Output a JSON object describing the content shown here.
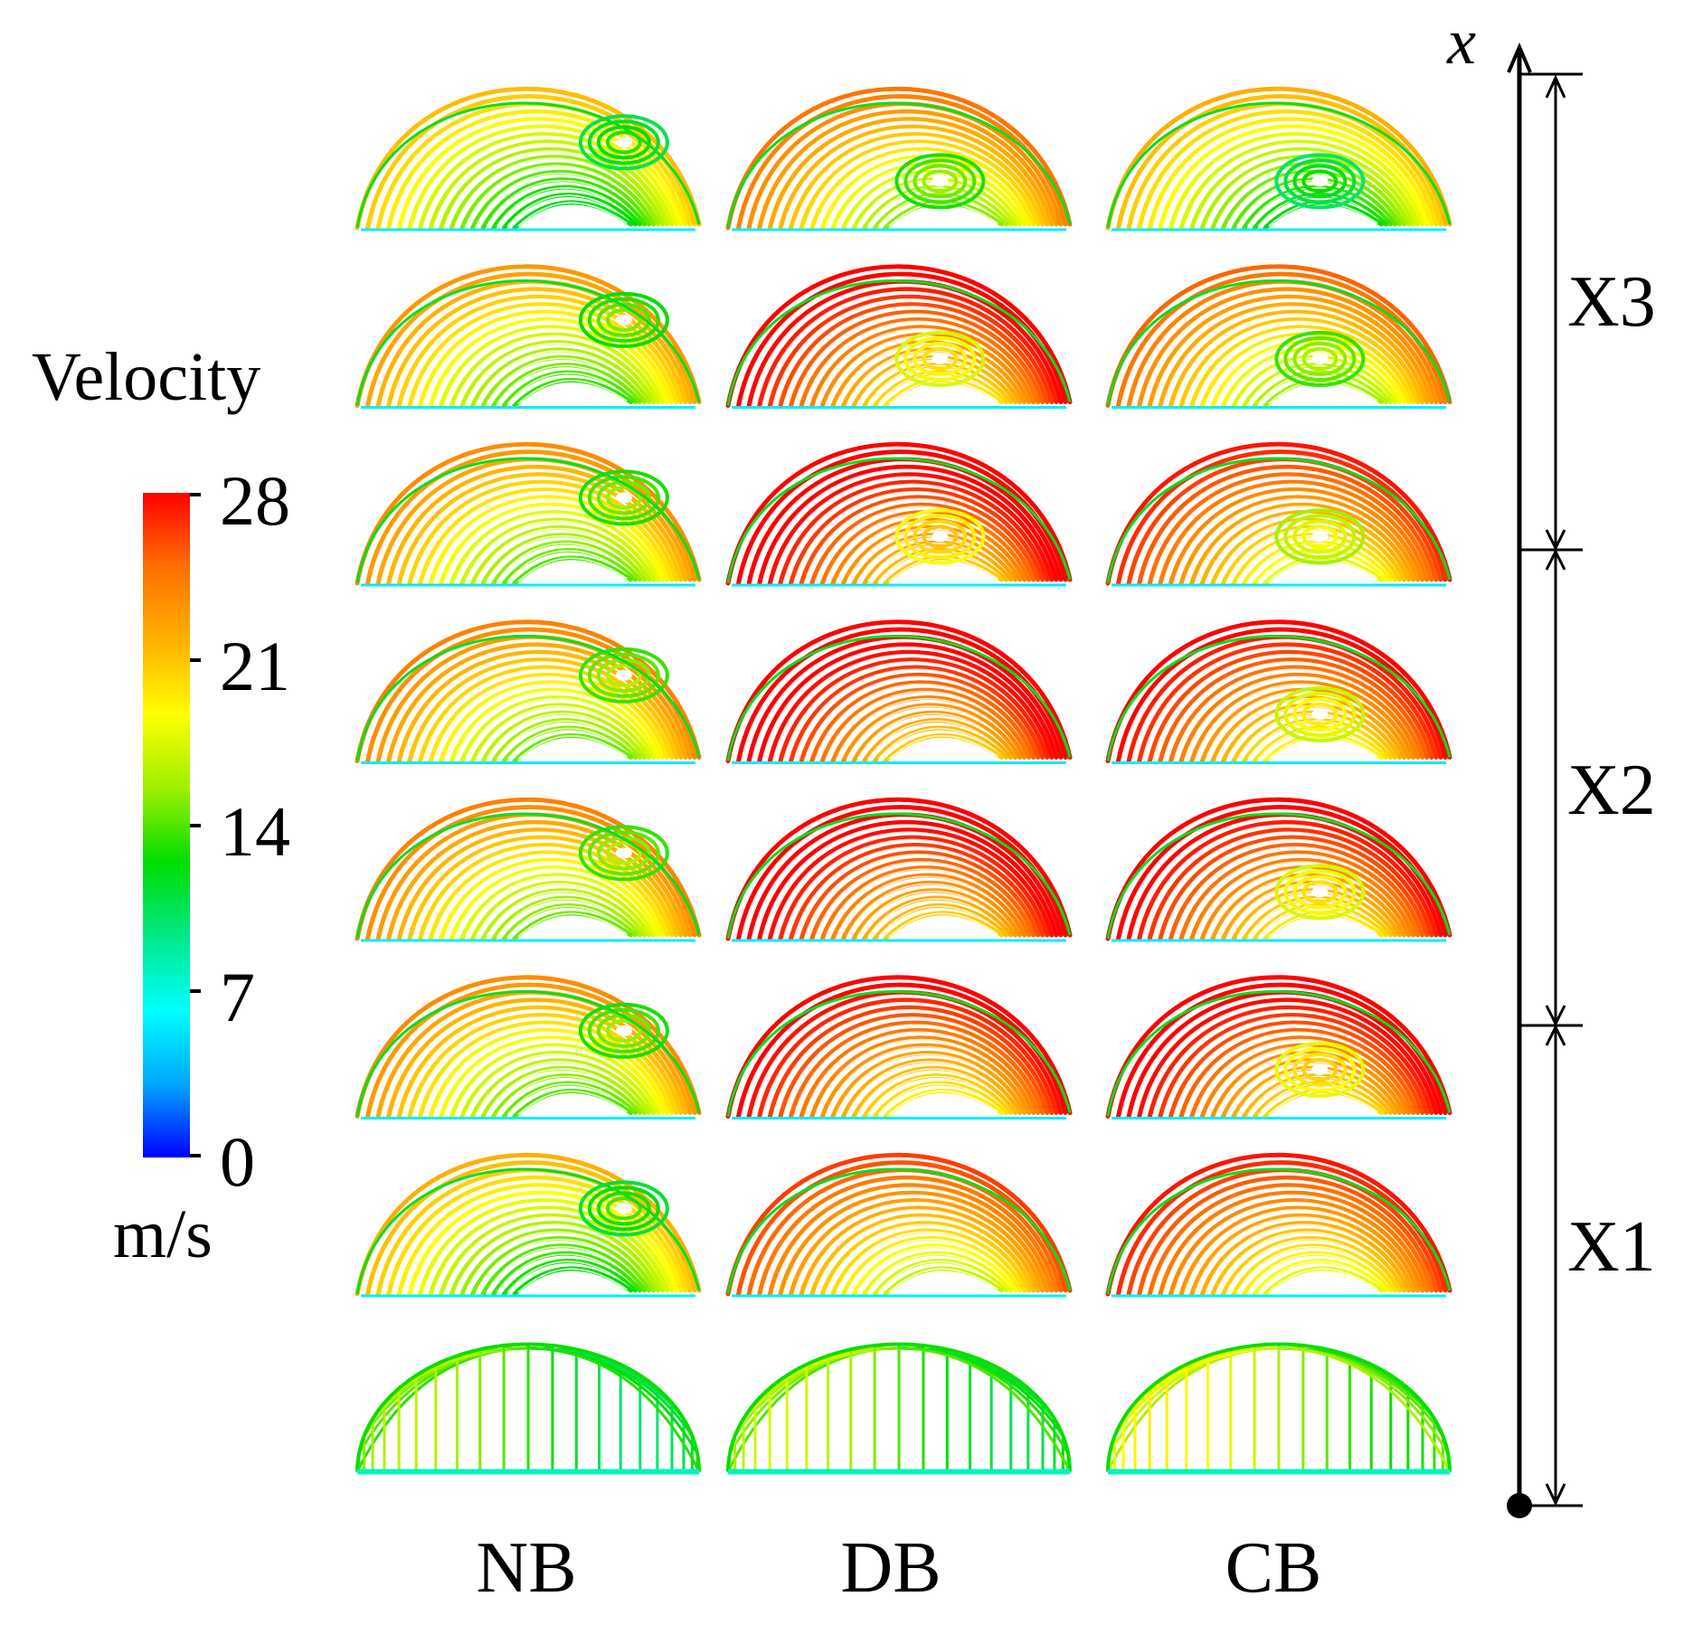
{
  "legend": {
    "title": "Velocity",
    "unit": "m/s",
    "ticks": [
      "28",
      "21",
      "14",
      "7",
      "0"
    ],
    "min": 0,
    "max": 28,
    "colormap": [
      "#0000ff",
      "#00a8ff",
      "#00ffff",
      "#00e887",
      "#00dd00",
      "#9ff000",
      "#ffff00",
      "#ffb000",
      "#ff7000",
      "#ff0000"
    ]
  },
  "columns": [
    "NB",
    "DB",
    "CB"
  ],
  "axis": {
    "label": "x",
    "segments": [
      "X3",
      "X2",
      "X1"
    ]
  },
  "panels": {
    "rows": 8,
    "intensity": [
      [
        0.62,
        0.7,
        0.6
      ],
      [
        0.68,
        0.86,
        0.72
      ],
      [
        0.7,
        0.9,
        0.8
      ],
      [
        0.72,
        0.9,
        0.84
      ],
      [
        0.72,
        0.9,
        0.86
      ],
      [
        0.7,
        0.85,
        0.88
      ],
      [
        0.64,
        0.76,
        0.8
      ],
      [
        0.55,
        0.58,
        0.65
      ]
    ],
    "eddy": [
      [
        true,
        true,
        true
      ],
      [
        true,
        true,
        true
      ],
      [
        true,
        true,
        true
      ],
      [
        true,
        false,
        true
      ],
      [
        true,
        false,
        true
      ],
      [
        true,
        false,
        true
      ],
      [
        true,
        false,
        false
      ],
      [
        false,
        false,
        false
      ]
    ]
  }
}
